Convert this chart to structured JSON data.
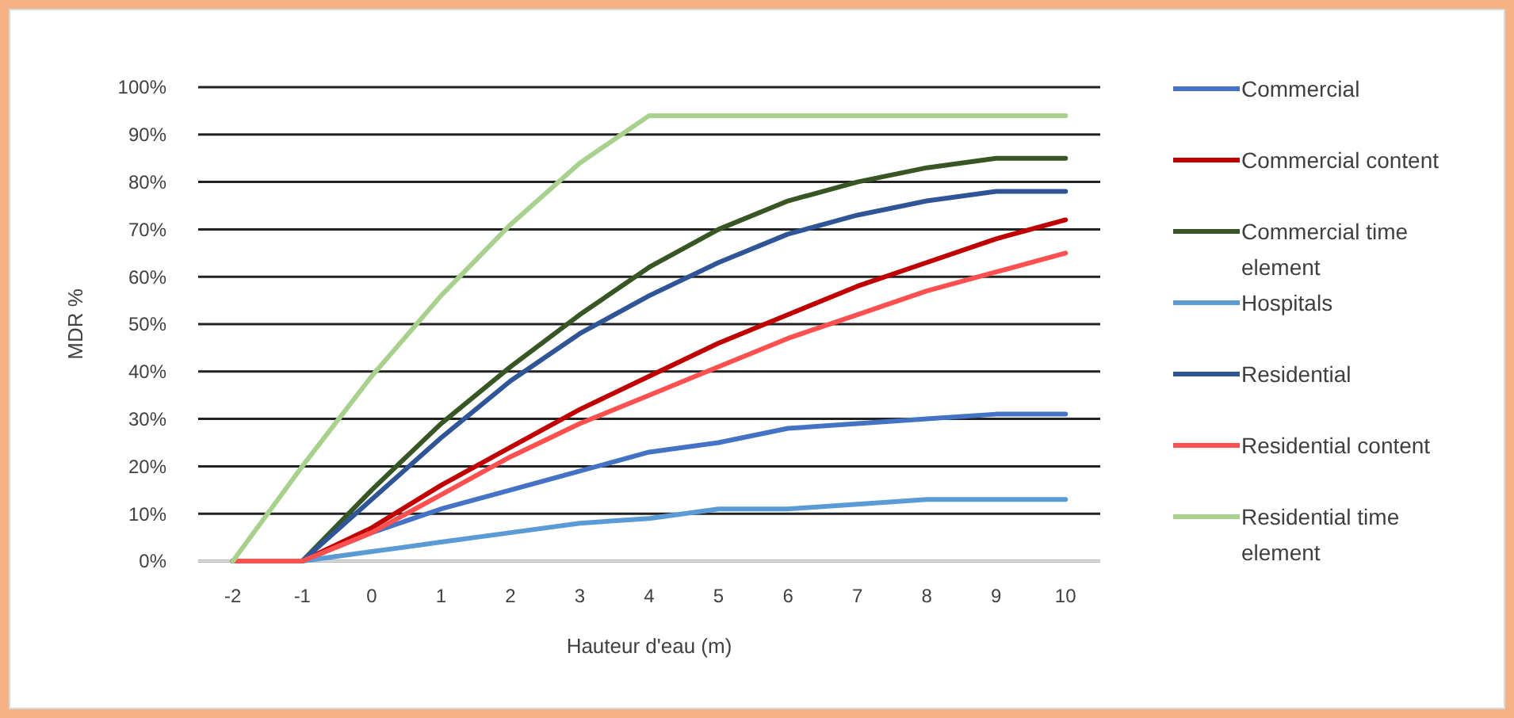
{
  "chart_data": {
    "type": "line",
    "xlabel": "Hauteur d'eau (m)",
    "ylabel": "MDR %",
    "categories": [
      "-2",
      "-1",
      "0",
      "1",
      "2",
      "3",
      "4",
      "5",
      "6",
      "7",
      "8",
      "9",
      "10"
    ],
    "ylim": [
      0,
      100
    ],
    "yticks": [
      {
        "value": 0,
        "label": "0%"
      },
      {
        "value": 10,
        "label": "10%"
      },
      {
        "value": 20,
        "label": "20%"
      },
      {
        "value": 30,
        "label": "30%"
      },
      {
        "value": 40,
        "label": "40%"
      },
      {
        "value": 50,
        "label": "50%"
      },
      {
        "value": 60,
        "label": "60%"
      },
      {
        "value": 70,
        "label": "70%"
      },
      {
        "value": 80,
        "label": "80%"
      },
      {
        "value": 90,
        "label": "90%"
      },
      {
        "value": 100,
        "label": "100%"
      }
    ],
    "grid": "y",
    "legend": "right",
    "marker": "none",
    "line_style": "solid",
    "series": [
      {
        "name": "Commercial",
        "color": "#4472c4",
        "values": [
          0,
          0,
          6,
          11,
          15,
          19,
          23,
          25,
          28,
          29,
          30,
          31,
          31
        ]
      },
      {
        "name": "Commercial content",
        "color": "#c00000",
        "values": [
          0,
          0,
          7,
          16,
          24,
          32,
          39,
          46,
          52,
          58,
          63,
          68,
          72
        ]
      },
      {
        "name": "Commercial time element",
        "color": "#375623",
        "values": [
          0,
          0,
          15,
          29,
          41,
          52,
          62,
          70,
          76,
          80,
          83,
          85,
          85
        ]
      },
      {
        "name": "Hospitals",
        "color": "#5b9bd5",
        "values": [
          0,
          0,
          2,
          4,
          6,
          8,
          9,
          11,
          11,
          12,
          13,
          13,
          13
        ]
      },
      {
        "name": "Residential",
        "color": "#2f5597",
        "values": [
          0,
          0,
          13,
          26,
          38,
          48,
          56,
          63,
          69,
          73,
          76,
          78,
          78
        ]
      },
      {
        "name": "Residential content",
        "color": "#ff5050",
        "values": [
          0,
          0,
          6,
          14,
          22,
          29,
          35,
          41,
          47,
          52,
          57,
          61,
          65
        ]
      },
      {
        "name": "Residential time element",
        "color": "#a9d18e",
        "values": [
          0,
          20,
          39,
          56,
          71,
          84,
          94,
          94,
          94,
          94,
          94,
          94,
          94
        ]
      }
    ]
  }
}
